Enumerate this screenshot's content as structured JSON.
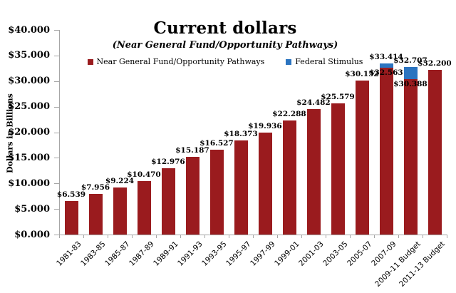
{
  "chart_data": {
    "type": "bar",
    "stacked": true,
    "title": "Current dollars",
    "subtitle": "(Near General Fund/Opportunity Pathways)",
    "ylabel": "Dollars in Billions",
    "ylim": [
      0,
      40
    ],
    "ytick_step": 5,
    "grid": false,
    "legend_position": "top-center",
    "axis_color": "#a6a6a6",
    "yticks": [
      {
        "label": "$40.000",
        "value": 40
      },
      {
        "label": "$35.000",
        "value": 35
      },
      {
        "label": "$30.000",
        "value": 30
      },
      {
        "label": "$25.000",
        "value": 25
      },
      {
        "label": "$20.000",
        "value": 20
      },
      {
        "label": "$15.000",
        "value": 15
      },
      {
        "label": "$10.000",
        "value": 10
      },
      {
        "label": "$5.000",
        "value": 5
      },
      {
        "label": "$0.000",
        "value": 0
      }
    ],
    "categories": [
      "1981-83",
      "1983-85",
      "1985-87",
      "1987-89",
      "1989-91",
      "1991-93",
      "1993-95",
      "1995-97",
      "1997-99",
      "1999-01",
      "2001-03",
      "2003-05",
      "2005-07",
      "2007-09",
      "2009-11 Budget",
      "2011-13 Budget"
    ],
    "series": [
      {
        "name": "Near General Fund/Opportunity Pathways",
        "color": "#9a1b1e",
        "values": [
          6.539,
          7.956,
          9.224,
          10.47,
          12.976,
          15.187,
          16.527,
          18.373,
          19.936,
          22.288,
          24.482,
          25.579,
          30.152,
          32.563,
          30.388,
          32.2
        ]
      },
      {
        "name": "Federal Stimulus",
        "color": "#2b74c0",
        "values": [
          0,
          0,
          0,
          0,
          0,
          0,
          0,
          0,
          0,
          0,
          0,
          0,
          0,
          0.851,
          2.319,
          0
        ]
      }
    ],
    "bar_labels": [
      {
        "total": "$6.539"
      },
      {
        "total": "$7.956"
      },
      {
        "total": "$9.224"
      },
      {
        "total": "$10.470"
      },
      {
        "total": "$12.976"
      },
      {
        "total": "$15.187"
      },
      {
        "total": "$16.527"
      },
      {
        "total": "$18.373"
      },
      {
        "total": "$19.936"
      },
      {
        "total": "$22.288"
      },
      {
        "total": "$24.482"
      },
      {
        "total": "$25.579"
      },
      {
        "total": "$30.152"
      },
      {
        "base": "$32.563",
        "total": "$33.414"
      },
      {
        "base": "$30.388",
        "total": "$32.707"
      },
      {
        "total": "$32.200"
      }
    ]
  }
}
